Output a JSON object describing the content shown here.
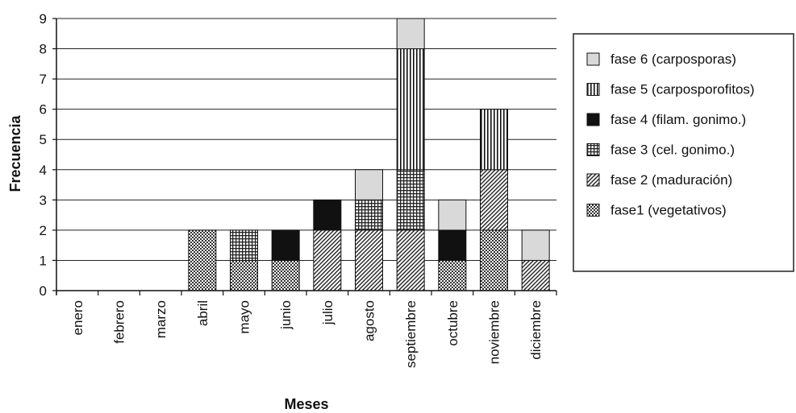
{
  "chart_data": {
    "type": "bar",
    "stacked": true,
    "categories": [
      "enero",
      "febrero",
      "marzo",
      "abril",
      "mayo",
      "junio",
      "julio",
      "agosto",
      "septiembre",
      "octubre",
      "noviembre",
      "diciembre"
    ],
    "series": [
      {
        "name": "fase1 (vegetativos)",
        "pattern": "checker",
        "values": [
          0,
          0,
          0,
          2,
          1,
          1,
          0,
          0,
          0,
          1,
          2,
          0
        ]
      },
      {
        "name": "fase 2 (maduración)",
        "pattern": "diagonal",
        "values": [
          0,
          0,
          0,
          0,
          0,
          0,
          2,
          2,
          2,
          0,
          2,
          1
        ]
      },
      {
        "name": "fase 3 (cel. gonimo.)",
        "pattern": "grid",
        "values": [
          0,
          0,
          0,
          0,
          1,
          0,
          0,
          1,
          2,
          0,
          0,
          0
        ]
      },
      {
        "name": "fase 4 (filam. gonimo.)",
        "pattern": "black",
        "values": [
          0,
          0,
          0,
          0,
          0,
          1,
          1,
          0,
          0,
          1,
          0,
          0
        ]
      },
      {
        "name": "fase 5 (carposporofitos)",
        "pattern": "vertical",
        "values": [
          0,
          0,
          0,
          0,
          0,
          0,
          0,
          0,
          4,
          0,
          2,
          0
        ]
      },
      {
        "name": "fase 6 (carposporas)",
        "pattern": "lightgray",
        "values": [
          0,
          0,
          0,
          0,
          0,
          0,
          0,
          1,
          1,
          1,
          0,
          1
        ]
      }
    ],
    "title": "",
    "xlabel": "Meses",
    "ylabel": "Frecuencia",
    "ylim": [
      0,
      9
    ],
    "yticks": [
      0,
      1,
      2,
      3,
      4,
      5,
      6,
      7,
      8,
      9
    ],
    "grid": true,
    "legend_position": "right",
    "legend_order": [
      5,
      4,
      3,
      2,
      1,
      0
    ]
  }
}
